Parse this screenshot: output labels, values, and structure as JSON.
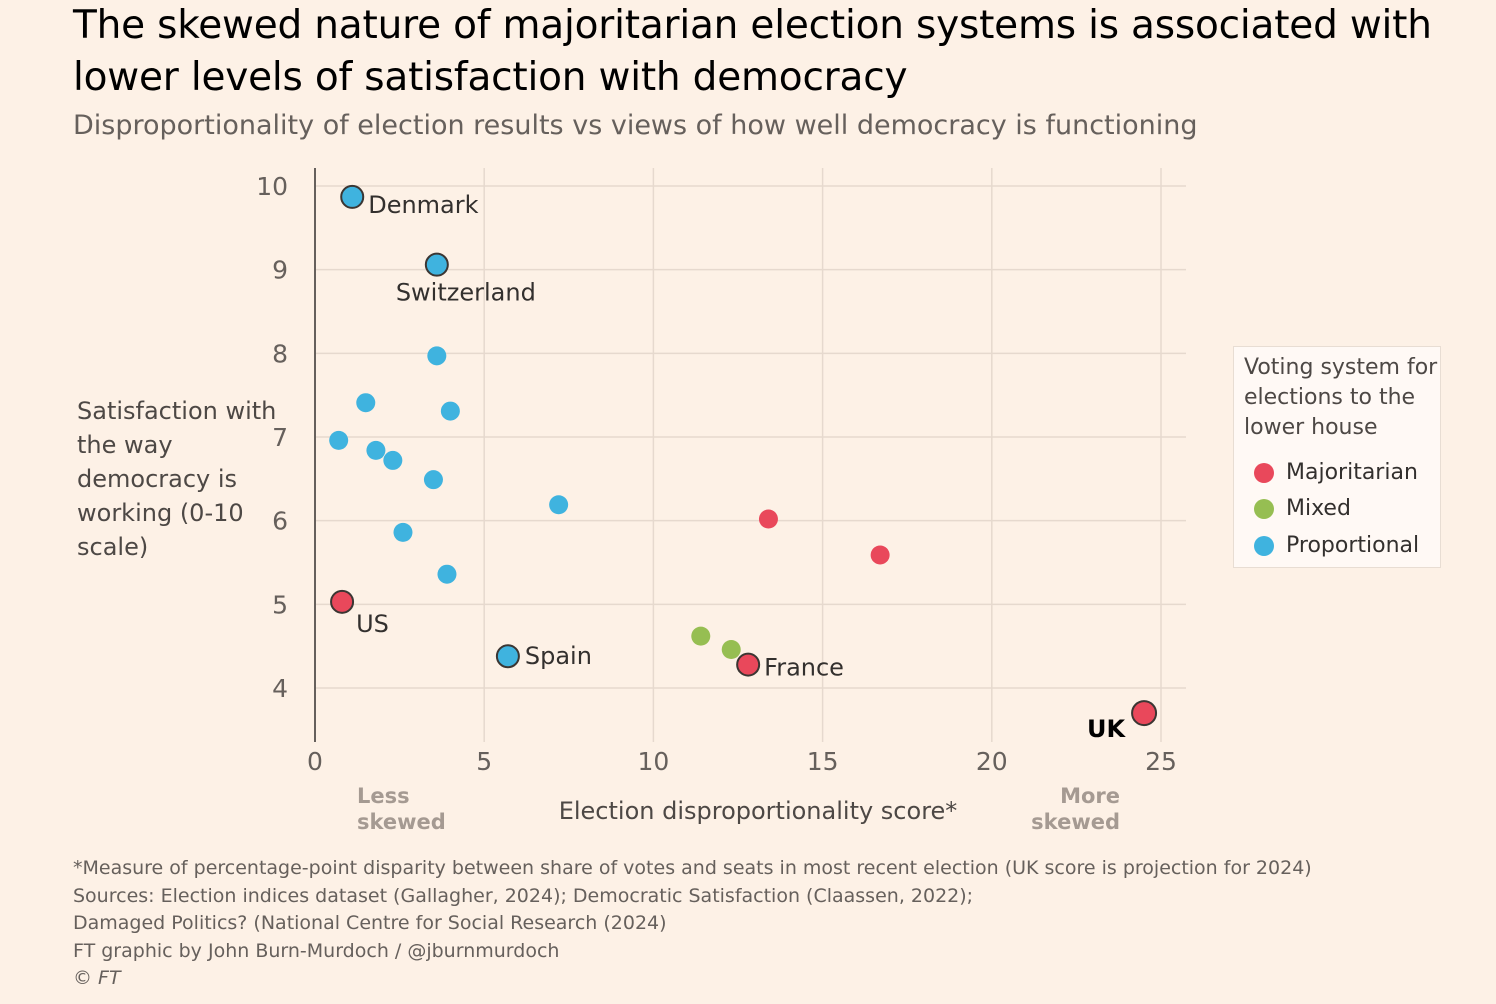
{
  "title": "The skewed nature of majoritarian election systems is associated with lower levels of satisfaction with democracy",
  "subtitle": "Disproportionality of election results vs views of how well democracy is functioning",
  "colors": {
    "Majoritarian": "#e9485b",
    "Mixed": "#96be52",
    "Proportional": "#3fb3df",
    "grid": "#e6d9ce",
    "axis": "#66605c"
  },
  "legend": {
    "title": "Voting system for elections to the lower house",
    "items": [
      {
        "label": "Majoritarian",
        "color": "#e9485b"
      },
      {
        "label": "Mixed",
        "color": "#96be52"
      },
      {
        "label": "Proportional",
        "color": "#3fb3df"
      }
    ]
  },
  "chart_data": {
    "type": "scatter",
    "title": "The skewed nature of majoritarian election systems is associated with lower levels of satisfaction with democracy",
    "subtitle": "Disproportionality of election results vs views of how well democracy is functioning",
    "xlabel": "Election disproportionality score*",
    "ylabel": "Satisfaction with the way democracy is working (0-10 scale)",
    "x_end_labels": {
      "left": "Less skewed",
      "right": "More skewed"
    },
    "xlim": [
      0,
      25
    ],
    "ylim": [
      3.4,
      10.2
    ],
    "xticks": [
      0,
      5,
      10,
      15,
      20,
      25
    ],
    "yticks": [
      4,
      5,
      6,
      7,
      8,
      9,
      10
    ],
    "grid": true,
    "legend_position": "right",
    "series": [
      {
        "name": "Majoritarian",
        "points": [
          {
            "x": 0.8,
            "y": 5.03,
            "label": "US"
          },
          {
            "x": 12.8,
            "y": 4.28,
            "label": "France"
          },
          {
            "x": 24.5,
            "y": 3.7,
            "label": "UK"
          },
          {
            "x": 13.4,
            "y": 6.02
          },
          {
            "x": 16.7,
            "y": 5.59
          }
        ]
      },
      {
        "name": "Mixed",
        "points": [
          {
            "x": 11.4,
            "y": 4.62
          },
          {
            "x": 12.3,
            "y": 4.46
          }
        ]
      },
      {
        "name": "Proportional",
        "points": [
          {
            "x": 1.1,
            "y": 9.87,
            "label": "Denmark"
          },
          {
            "x": 3.6,
            "y": 9.06,
            "label": "Switzerland"
          },
          {
            "x": 5.7,
            "y": 4.38,
            "label": "Spain"
          },
          {
            "x": 3.6,
            "y": 7.97
          },
          {
            "x": 1.5,
            "y": 7.41
          },
          {
            "x": 4.0,
            "y": 7.31
          },
          {
            "x": 0.7,
            "y": 6.96
          },
          {
            "x": 1.8,
            "y": 6.84
          },
          {
            "x": 2.3,
            "y": 6.72
          },
          {
            "x": 3.5,
            "y": 6.49
          },
          {
            "x": 7.2,
            "y": 6.19
          },
          {
            "x": 2.6,
            "y": 5.86
          },
          {
            "x": 3.9,
            "y": 5.36
          }
        ]
      }
    ]
  },
  "footer": {
    "note": "*Measure of percentage-point disparity between share of votes and seats in most recent election (UK score is projection for 2024)",
    "sources_line1": "Sources: Election indices dataset (Gallagher, 2024); Democratic Satisfaction (Claassen, 2022);",
    "sources_line2": "Damaged Politics? (National Centre for Social Research (2024)",
    "credit": "FT graphic by John Burn-Murdoch / @jburnmurdoch",
    "copyright": "© FT"
  }
}
